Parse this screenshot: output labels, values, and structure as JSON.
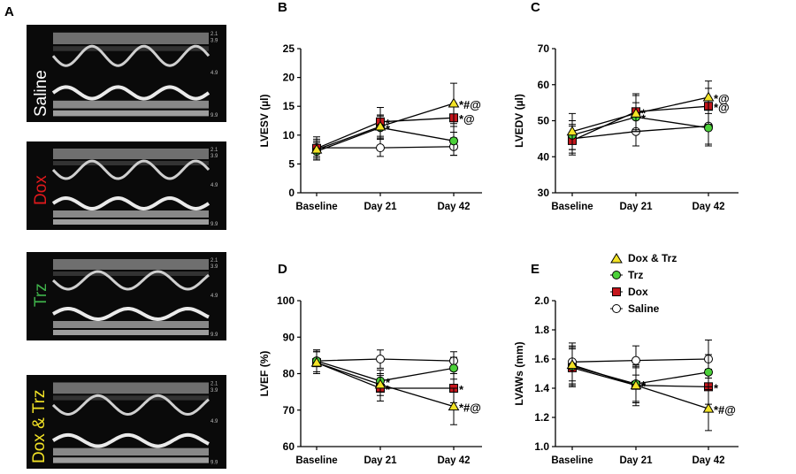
{
  "panel_letters": [
    "A",
    "B",
    "C",
    "D",
    "E"
  ],
  "echo_panels": [
    {
      "name": "Saline",
      "color": "#ffffff"
    },
    {
      "name": "Dox",
      "color": "#e0191c"
    },
    {
      "name": "Trz",
      "color": "#3fb24a"
    },
    {
      "name": "Dox & Trz",
      "color": "#f3e326"
    }
  ],
  "echo_scale_ticks": [
    [
      "2.1",
      "3.9",
      "4.9",
      "9.9"
    ],
    [
      "2.1",
      "3.9",
      "4.9",
      "9.9"
    ],
    [
      "2.1",
      "3.9",
      "4.9",
      "9.9"
    ],
    [
      "2.1",
      "3.9",
      "4.9",
      "9.9"
    ]
  ],
  "legend": [
    {
      "label": "Dox & Trz",
      "marker": "triangle",
      "fill": "#f3e326"
    },
    {
      "label": "Trz",
      "marker": "circle",
      "fill": "#4cd13a"
    },
    {
      "label": "Dox",
      "marker": "square",
      "fill": "#c4161c"
    },
    {
      "label": "Saline",
      "marker": "circle",
      "fill": "#ffffff"
    }
  ],
  "chart_data": [
    {
      "panel": "B",
      "type": "line",
      "categories": [
        "Baseline",
        "Day 21",
        "Day 42"
      ],
      "ylabel": "LVESV (µl)",
      "ylim": [
        0,
        25
      ],
      "yticks": [
        0,
        5,
        10,
        15,
        20,
        25
      ],
      "series": [
        {
          "name": "Saline",
          "values": [
            7.8,
            7.8,
            8.0
          ],
          "errors": [
            1.5,
            1.5,
            1.5
          ]
        },
        {
          "name": "Dox",
          "values": [
            7.7,
            12.3,
            13.0
          ],
          "errors": [
            2,
            2.5,
            2.5
          ]
        },
        {
          "name": "Trz",
          "values": [
            7.2,
            11.3,
            9.0
          ],
          "errors": [
            1.5,
            2.0,
            2.5
          ]
        },
        {
          "name": "Dox & Trz",
          "values": [
            7.5,
            11.5,
            15.5
          ],
          "errors": [
            1.5,
            2.0,
            3.5
          ]
        }
      ],
      "annotations": [
        {
          "category": "Day 21",
          "series": "Dox",
          "text": "*"
        },
        {
          "category": "Day 21",
          "series": "Trz",
          "text": "*"
        },
        {
          "category": "Day 42",
          "series": "Dox & Trz",
          "text": "*#@"
        },
        {
          "category": "Day 42",
          "series": "Dox",
          "text": "*@"
        }
      ]
    },
    {
      "panel": "C",
      "type": "line",
      "categories": [
        "Baseline",
        "Day 21",
        "Day 42"
      ],
      "ylabel": "LVEDV (µl)",
      "ylim": [
        30,
        70
      ],
      "yticks": [
        30,
        40,
        50,
        60,
        70
      ],
      "series": [
        {
          "name": "Saline",
          "values": [
            45.0,
            47.0,
            48.5
          ],
          "errors": [
            4,
            4,
            5
          ]
        },
        {
          "name": "Dox",
          "values": [
            44.5,
            52.5,
            54.0
          ],
          "errors": [
            4,
            5,
            5
          ]
        },
        {
          "name": "Trz",
          "values": [
            46.0,
            51.0,
            48.0
          ],
          "errors": [
            4,
            4,
            5
          ]
        },
        {
          "name": "Dox & Trz",
          "values": [
            47.0,
            52.0,
            56.5
          ],
          "errors": [
            5,
            5,
            4.5
          ]
        }
      ],
      "annotations": [
        {
          "category": "Day 21",
          "series": "Dox",
          "text": "*"
        },
        {
          "category": "Day 21",
          "series": "Trz",
          "text": "*"
        },
        {
          "category": "Day 42",
          "series": "Dox & Trz",
          "text": "*@"
        },
        {
          "category": "Day 42",
          "series": "Dox",
          "text": "*@"
        }
      ]
    },
    {
      "panel": "D",
      "type": "line",
      "categories": [
        "Baseline",
        "Day 21",
        "Day 42"
      ],
      "ylabel": "LVEF (%)",
      "ylim": [
        60,
        100
      ],
      "yticks": [
        60,
        70,
        80,
        90,
        100
      ],
      "series": [
        {
          "name": "Saline",
          "values": [
            83.5,
            84.0,
            83.5
          ],
          "errors": [
            3,
            2.5,
            2.5
          ]
        },
        {
          "name": "Dox",
          "values": [
            83.0,
            76.0,
            76.0
          ],
          "errors": [
            3,
            3.5,
            4
          ]
        },
        {
          "name": "Trz",
          "values": [
            83.5,
            78.0,
            81.5
          ],
          "errors": [
            3,
            3,
            3
          ]
        },
        {
          "name": "Dox & Trz",
          "values": [
            83.0,
            77.0,
            71.0
          ],
          "errors": [
            3,
            3,
            5
          ]
        }
      ],
      "annotations": [
        {
          "category": "Day 21",
          "series": "Trz",
          "text": "*"
        },
        {
          "category": "Day 21",
          "series": "Dox",
          "text": "*"
        },
        {
          "category": "Day 42",
          "series": "Dox",
          "text": "*"
        },
        {
          "category": "Day 42",
          "series": "Dox & Trz",
          "text": "*#@"
        }
      ]
    },
    {
      "panel": "E",
      "type": "line",
      "categories": [
        "Baseline",
        "Day 21",
        "Day 42"
      ],
      "ylabel": "LVAWs (mm)",
      "ylim": [
        1.0,
        2.0
      ],
      "yticks": [
        1.0,
        1.2,
        1.4,
        1.6,
        1.8,
        2.0
      ],
      "series": [
        {
          "name": "Saline",
          "values": [
            1.58,
            1.59,
            1.6
          ],
          "errors": [
            0.13,
            0.1,
            0.13
          ]
        },
        {
          "name": "Dox",
          "values": [
            1.54,
            1.42,
            1.41
          ],
          "errors": [
            0.13,
            0.12,
            0.12
          ]
        },
        {
          "name": "Trz",
          "values": [
            1.55,
            1.43,
            1.51
          ],
          "errors": [
            0.13,
            0.12,
            0.12
          ]
        },
        {
          "name": "Dox & Trz",
          "values": [
            1.56,
            1.42,
            1.26
          ],
          "errors": [
            0.13,
            0.14,
            0.15
          ]
        }
      ],
      "annotations": [
        {
          "category": "Day 21",
          "series": "Trz",
          "text": "*"
        },
        {
          "category": "Day 21",
          "series": "Dox & Trz",
          "text": "*"
        },
        {
          "category": "Day 42",
          "series": "Dox",
          "text": "*"
        },
        {
          "category": "Day 42",
          "series": "Dox & Trz",
          "text": "*#@"
        }
      ]
    }
  ]
}
